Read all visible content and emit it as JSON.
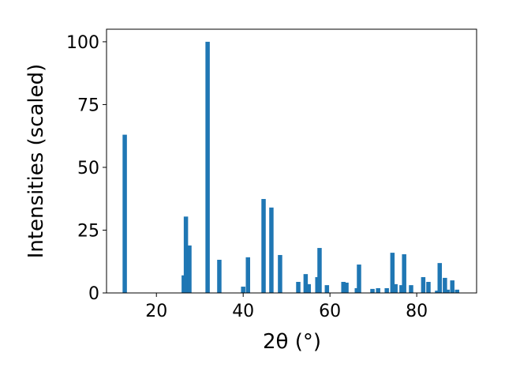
{
  "chart_data": {
    "type": "bar",
    "x_label": "2θ (°)",
    "y_label": "Intensities (scaled)",
    "x": [
      12.7,
      26.3,
      26.8,
      27.6,
      31.8,
      34.5,
      40.0,
      41.1,
      44.7,
      46.5,
      48.5,
      52.7,
      54.4,
      55.1,
      57.1,
      57.6,
      59.3,
      63.1,
      63.8,
      66.2,
      66.7,
      69.8,
      71.1,
      73.1,
      74.4,
      75.1,
      76.5,
      77.1,
      78.7,
      81.5,
      82.7,
      84.7,
      85.3,
      86.5,
      87.1,
      88.2,
      89.3
    ],
    "values": [
      63,
      7,
      30.4,
      18.9,
      100,
      13.2,
      2.5,
      14.2,
      37.4,
      34,
      15.1,
      4.4,
      7.5,
      3.5,
      6.3,
      17.9,
      3.1,
      4.4,
      4.1,
      1.9,
      11.3,
      1.6,
      1.9,
      1.9,
      16,
      3.5,
      3.1,
      15.4,
      3.1,
      6.3,
      4.4,
      0.9,
      11.9,
      6.0,
      1.3,
      5.0,
      1.3
    ],
    "color": "#1f77b4",
    "xlim": [
      8.5,
      93.8
    ],
    "ylim": [
      0,
      105
    ],
    "xticks": [
      20,
      40,
      60,
      80
    ],
    "yticks": [
      0,
      25,
      50,
      75,
      100
    ]
  }
}
